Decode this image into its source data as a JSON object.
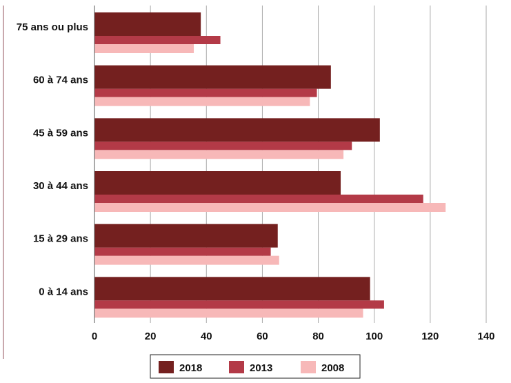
{
  "chart_data": {
    "type": "bar",
    "orientation": "horizontal",
    "categories": [
      "75 ans ou plus",
      "60 à 74 ans",
      "45 à 59 ans",
      "30 à 44 ans",
      "15 à 29 ans",
      "0 à 14 ans"
    ],
    "series": [
      {
        "name": "2018",
        "color": "#74201f",
        "values": [
          38,
          84.5,
          102,
          88,
          65.5,
          98.5
        ]
      },
      {
        "name": "2013",
        "color": "#b33a47",
        "values": [
          45,
          79.5,
          92,
          117.5,
          63,
          103.5
        ]
      },
      {
        "name": "2008",
        "color": "#f7b8b8",
        "values": [
          35.5,
          77,
          89,
          125.5,
          66,
          96
        ]
      }
    ],
    "x_ticks": [
      "0",
      "20",
      "40",
      "60",
      "80",
      "100",
      "120",
      "140"
    ],
    "xlim": [
      0,
      140
    ],
    "grid": "vertical",
    "legend_position": "bottom"
  }
}
